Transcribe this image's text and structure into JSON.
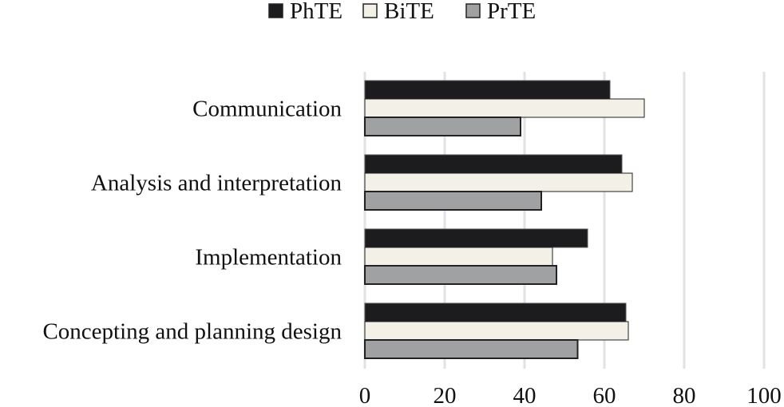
{
  "chart_data": {
    "type": "bar",
    "orientation": "horizontal",
    "categories": [
      "Communication",
      "Analysis and interpretation",
      "Implementation",
      "Concepting and planning design"
    ],
    "series": [
      {
        "name": "PhTE",
        "color": "#1c1b1e",
        "values": [
          61.4,
          64.4,
          55.8,
          65.4
        ]
      },
      {
        "name": "BiTE",
        "color": "#f3f0e8",
        "values": [
          70,
          67,
          47,
          66
        ]
      },
      {
        "name": "PrTE",
        "color": "#a0a1a3",
        "values": [
          39,
          44.2,
          48,
          53.3
        ]
      }
    ],
    "xlim": [
      0,
      100
    ],
    "xticks": [
      "0",
      "20",
      "40",
      "60",
      "80",
      "100"
    ],
    "grid": true,
    "legend": "top"
  }
}
